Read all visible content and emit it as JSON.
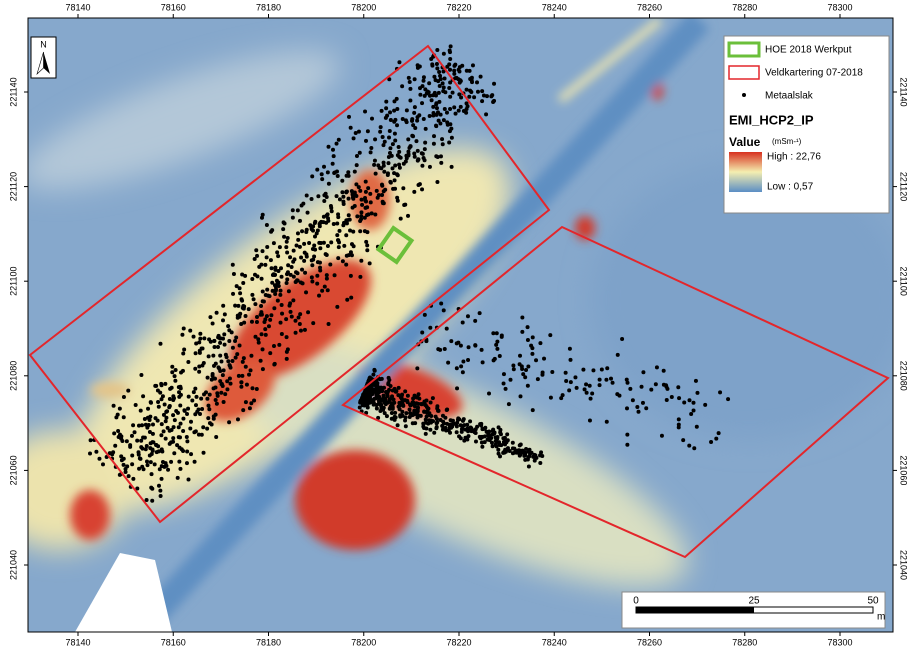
{
  "map": {
    "north_label": "N",
    "x_ticks": [
      78140,
      78160,
      78180,
      78200,
      78220,
      78240,
      78260,
      78280,
      78300
    ],
    "y_ticks": [
      221040,
      221060,
      221080,
      221100,
      221120,
      221140
    ],
    "legend": {
      "items": [
        "HOE 2018 Werkput",
        "Veldkartering 07-2018",
        "Metaalslak"
      ],
      "layer": "EMI_HCP2_IP",
      "value_label": "Value",
      "unit": "(mSm-¹)",
      "high": "High : 22,76",
      "low": "Low : 0,57"
    },
    "scale_bar": {
      "labels": [
        "0",
        "25",
        "50"
      ],
      "unit": "m"
    }
  }
}
